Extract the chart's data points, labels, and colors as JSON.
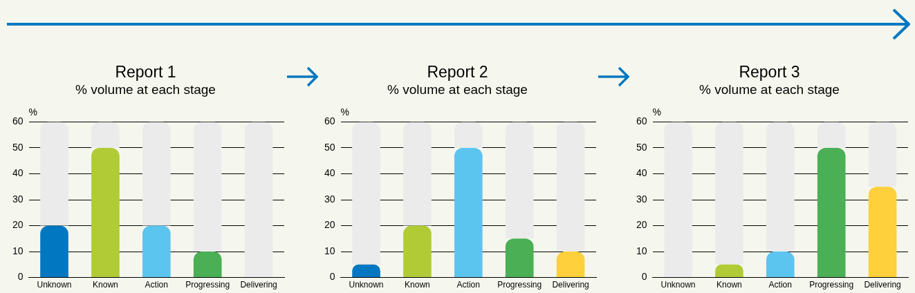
{
  "chart_data": [
    {
      "type": "bar",
      "title": "Report 1",
      "subtitle": "% volume at each stage",
      "ylabel": "%",
      "categories": [
        "Unknown",
        "Known",
        "Action",
        "Progressing",
        "Delivering"
      ],
      "stacked": true,
      "series": [
        {
          "colors": [
            "#0077c0",
            "#b0cb36",
            "#5bc5f0",
            "#4aaf55",
            "#fdd03c"
          ],
          "values": [
            20,
            50,
            20,
            10,
            0
          ]
        },
        {
          "color": "#ebebeb",
          "values": [
            40,
            10,
            40,
            50,
            60
          ]
        }
      ],
      "ylim": [
        0,
        60
      ],
      "yticks": [
        0,
        10,
        20,
        30,
        40,
        50,
        60
      ],
      "grid": "y"
    },
    {
      "type": "bar",
      "title": "Report 2",
      "subtitle": "% volume at each stage",
      "ylabel": "%",
      "categories": [
        "Unknown",
        "Known",
        "Action",
        "Progressing",
        "Delivering"
      ],
      "stacked": true,
      "series": [
        {
          "colors": [
            "#0077c0",
            "#b0cb36",
            "#5bc5f0",
            "#4aaf55",
            "#fdd03c"
          ],
          "values": [
            5,
            20,
            50,
            15,
            10
          ]
        },
        {
          "color": "#ebebeb",
          "values": [
            55,
            40,
            10,
            45,
            50
          ]
        }
      ],
      "ylim": [
        0,
        60
      ],
      "yticks": [
        0,
        10,
        20,
        30,
        40,
        50,
        60
      ],
      "grid": "y"
    },
    {
      "type": "bar",
      "title": "Report 3",
      "subtitle": "% volume at each stage",
      "ylabel": "%",
      "categories": [
        "Unknown",
        "Known",
        "Action",
        "Progressing",
        "Delivering"
      ],
      "stacked": true,
      "series": [
        {
          "colors": [
            "#0077c0",
            "#b0cb36",
            "#5bc5f0",
            "#4aaf55",
            "#fdd03c"
          ],
          "values": [
            0,
            5,
            10,
            50,
            35
          ]
        },
        {
          "color": "#ebebeb",
          "values": [
            60,
            55,
            50,
            10,
            25
          ]
        }
      ],
      "ylim": [
        0,
        60
      ],
      "yticks": [
        0,
        10,
        20,
        30,
        40,
        50,
        60
      ],
      "grid": "y"
    }
  ]
}
